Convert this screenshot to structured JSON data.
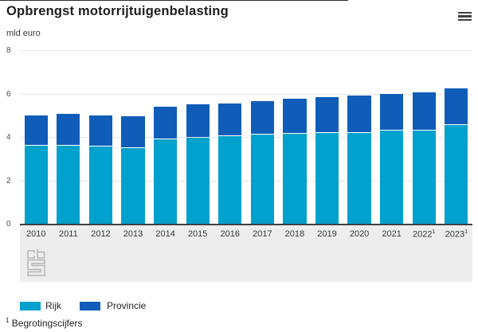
{
  "title": "Opbrengst motorrijtuigenbelasting",
  "unit_label": "mld euro",
  "menu": {
    "icon": "hamburger-menu"
  },
  "footnote": {
    "marker": "1",
    "text": "Begrotingscijfers"
  },
  "colors": {
    "rijk": "#00a1cd",
    "provincie": "#0f5db8",
    "axis_line": "#404040",
    "gridline": "#e4e4e4",
    "label_band": "#ededed",
    "logo_gray": "#b5b5b5"
  },
  "chart_data": {
    "type": "bar",
    "stacked": true,
    "title": "Opbrengst motorrijtuigenbelasting",
    "ylabel": "mld euro",
    "ylim": [
      0,
      8
    ],
    "yticks": [
      0,
      2,
      4,
      6,
      8
    ],
    "grid": true,
    "legend_position": "bottom",
    "categories": [
      "2010",
      "2011",
      "2012",
      "2013",
      "2014",
      "2015",
      "2016",
      "2017",
      "2018",
      "2019",
      "2020",
      "2021",
      "2022",
      "2023"
    ],
    "category_superscripts": [
      "",
      "",
      "",
      "",
      "",
      "",
      "",
      "",
      "",
      "",
      "",
      "",
      "1",
      "1"
    ],
    "series": [
      {
        "name": "Rijk",
        "color": "#00a1cd",
        "values": [
          3.6,
          3.6,
          3.55,
          3.5,
          3.9,
          3.95,
          4.05,
          4.1,
          4.15,
          4.2,
          4.2,
          4.3,
          4.3,
          4.55
        ]
      },
      {
        "name": "Provincie",
        "color": "#0f5db8",
        "values": [
          1.4,
          1.45,
          1.45,
          1.45,
          1.5,
          1.55,
          1.5,
          1.55,
          1.6,
          1.65,
          1.7,
          1.7,
          1.75,
          1.7
        ]
      }
    ]
  }
}
